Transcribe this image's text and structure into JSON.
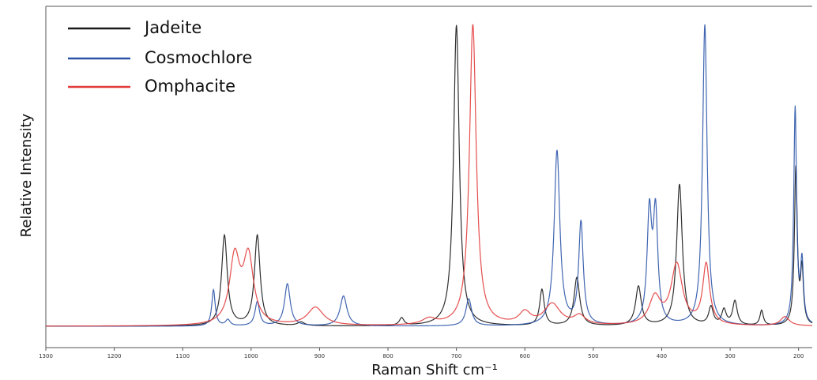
{
  "chart_data": {
    "type": "line",
    "xlabel": "Raman Shift cm⁻¹",
    "ylabel": "Relative Intensity",
    "xlim": [
      1300,
      180
    ],
    "x_reversed": true,
    "ylim": [
      0,
      1.05
    ],
    "x_ticks": [
      1300,
      1200,
      1100,
      1000,
      900,
      800,
      700,
      600,
      500,
      400,
      300,
      200
    ],
    "grid": false,
    "legend_position": "top-left",
    "series": [
      {
        "name": "Jadeite",
        "color": "#1a1a1a",
        "peaks": [
          {
            "x": 1039,
            "h": 0.3,
            "w": 5
          },
          {
            "x": 991,
            "h": 0.3,
            "w": 5
          },
          {
            "x": 927,
            "h": 0.012,
            "w": 6
          },
          {
            "x": 780,
            "h": 0.025,
            "w": 4
          },
          {
            "x": 700,
            "h": 1.0,
            "w": 5
          },
          {
            "x": 575,
            "h": 0.12,
            "w": 4
          },
          {
            "x": 524,
            "h": 0.16,
            "w": 5
          },
          {
            "x": 434,
            "h": 0.13,
            "w": 5
          },
          {
            "x": 374,
            "h": 0.47,
            "w": 5
          },
          {
            "x": 328,
            "h": 0.06,
            "w": 4
          },
          {
            "x": 309,
            "h": 0.05,
            "w": 4
          },
          {
            "x": 293,
            "h": 0.08,
            "w": 4
          },
          {
            "x": 254,
            "h": 0.05,
            "w": 3
          },
          {
            "x": 204,
            "h": 0.52,
            "w": 2.5
          },
          {
            "x": 195,
            "h": 0.18,
            "w": 2.5
          }
        ]
      },
      {
        "name": "Cosmochlore",
        "color": "#2b54a8",
        "peaks": [
          {
            "x": 1055,
            "h": 0.12,
            "w": 3
          },
          {
            "x": 1034,
            "h": 0.02,
            "w": 4
          },
          {
            "x": 991,
            "h": 0.08,
            "w": 4
          },
          {
            "x": 947,
            "h": 0.14,
            "w": 5
          },
          {
            "x": 865,
            "h": 0.1,
            "w": 6
          },
          {
            "x": 682,
            "h": 0.09,
            "w": 5
          },
          {
            "x": 553,
            "h": 0.58,
            "w": 5
          },
          {
            "x": 518,
            "h": 0.34,
            "w": 4
          },
          {
            "x": 418,
            "h": 0.36,
            "w": 4
          },
          {
            "x": 409,
            "h": 0.36,
            "w": 4
          },
          {
            "x": 337,
            "h": 1.0,
            "w": 4
          },
          {
            "x": 205,
            "h": 0.72,
            "w": 2.5
          },
          {
            "x": 195,
            "h": 0.2,
            "w": 2.5
          }
        ]
      },
      {
        "name": "Omphacite",
        "color": "#e23b3b",
        "peaks": [
          {
            "x": 1024,
            "h": 0.22,
            "w": 9
          },
          {
            "x": 1004,
            "h": 0.22,
            "w": 9
          },
          {
            "x": 906,
            "h": 0.06,
            "w": 14
          },
          {
            "x": 740,
            "h": 0.02,
            "w": 12
          },
          {
            "x": 676,
            "h": 1.0,
            "w": 6
          },
          {
            "x": 600,
            "h": 0.04,
            "w": 10
          },
          {
            "x": 560,
            "h": 0.07,
            "w": 14
          },
          {
            "x": 520,
            "h": 0.03,
            "w": 10
          },
          {
            "x": 410,
            "h": 0.09,
            "w": 10
          },
          {
            "x": 378,
            "h": 0.2,
            "w": 10
          },
          {
            "x": 335,
            "h": 0.2,
            "w": 6
          },
          {
            "x": 220,
            "h": 0.03,
            "w": 8
          }
        ]
      }
    ]
  }
}
